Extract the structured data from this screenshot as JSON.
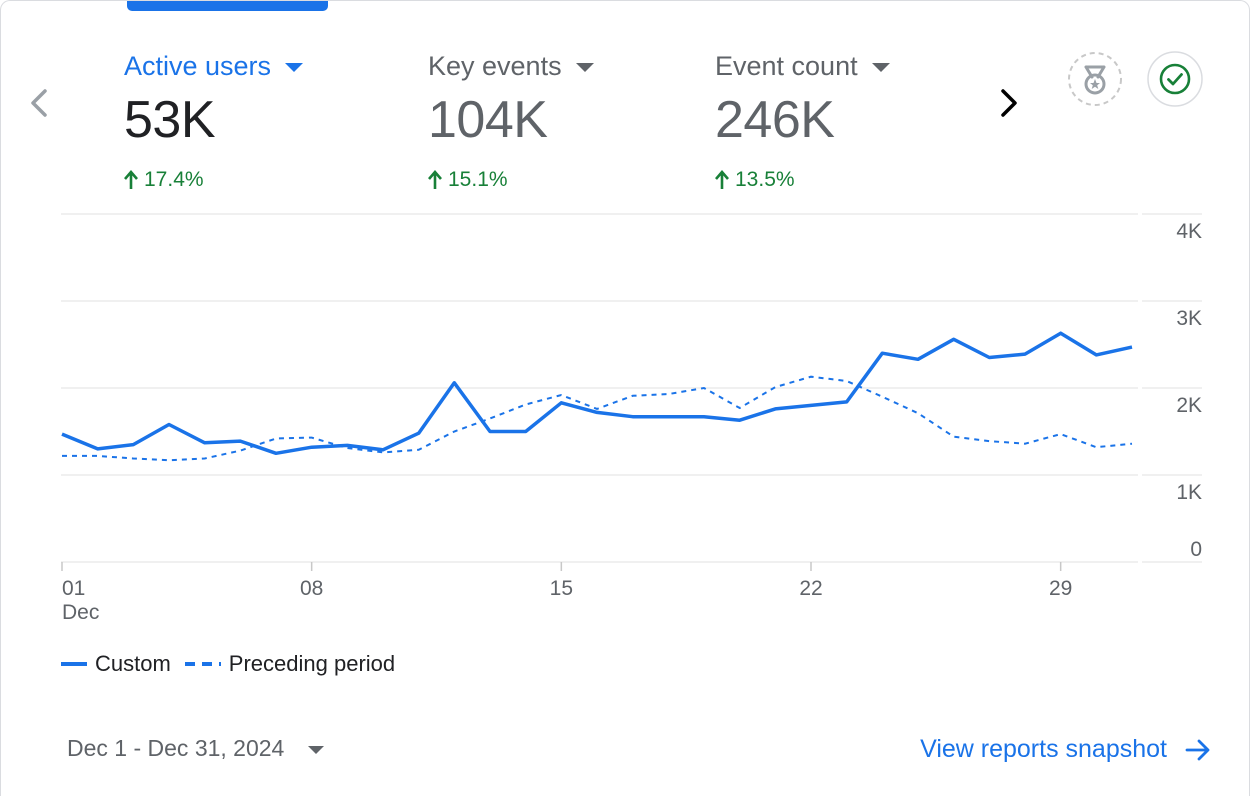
{
  "metrics": [
    {
      "label": "Active users",
      "value": "53K",
      "change": "17.4%"
    },
    {
      "label": "Key events",
      "value": "104K",
      "change": "15.1%"
    },
    {
      "label": "Event count",
      "value": "246K",
      "change": "13.5%"
    }
  ],
  "colors": {
    "accent": "#1a73e8",
    "positive": "#188038",
    "grid": "#e0e0e0",
    "muted": "#5f6368"
  },
  "chart_data": {
    "type": "line",
    "x": [
      1,
      2,
      3,
      4,
      5,
      6,
      7,
      8,
      9,
      10,
      11,
      12,
      13,
      14,
      15,
      16,
      17,
      18,
      19,
      20,
      21,
      22,
      23,
      24,
      25,
      26,
      27,
      28,
      29,
      30,
      31
    ],
    "series": [
      {
        "name": "Custom",
        "style": "solid",
        "values": [
          1470,
          1300,
          1350,
          1580,
          1370,
          1390,
          1250,
          1320,
          1340,
          1290,
          1480,
          2060,
          1500,
          1500,
          1830,
          1720,
          1670,
          1670,
          1670,
          1630,
          1760,
          1800,
          1840,
          2400,
          2330,
          2560,
          2350,
          2390,
          2630,
          2380,
          2470
        ]
      },
      {
        "name": "Preceding period",
        "style": "dashed",
        "values": [
          1220,
          1220,
          1190,
          1170,
          1190,
          1280,
          1420,
          1430,
          1310,
          1260,
          1290,
          1500,
          1650,
          1810,
          1920,
          1760,
          1910,
          1930,
          2000,
          1770,
          2010,
          2130,
          2080,
          1900,
          1710,
          1440,
          1390,
          1360,
          1470,
          1320,
          1360
        ]
      }
    ],
    "ylim": [
      0,
      4000
    ],
    "yticks": [
      "0",
      "1K",
      "2K",
      "3K",
      "4K"
    ],
    "xticks": [
      {
        "day": 1,
        "label": "01",
        "sublabel": "Dec"
      },
      {
        "day": 8,
        "label": "08"
      },
      {
        "day": 15,
        "label": "15"
      },
      {
        "day": 22,
        "label": "22"
      },
      {
        "day": 29,
        "label": "29"
      }
    ]
  },
  "legend": {
    "custom": "Custom",
    "preceding": "Preceding period"
  },
  "footer": {
    "date_range": "Dec 1 - Dec 31, 2024",
    "link": "View reports snapshot"
  }
}
